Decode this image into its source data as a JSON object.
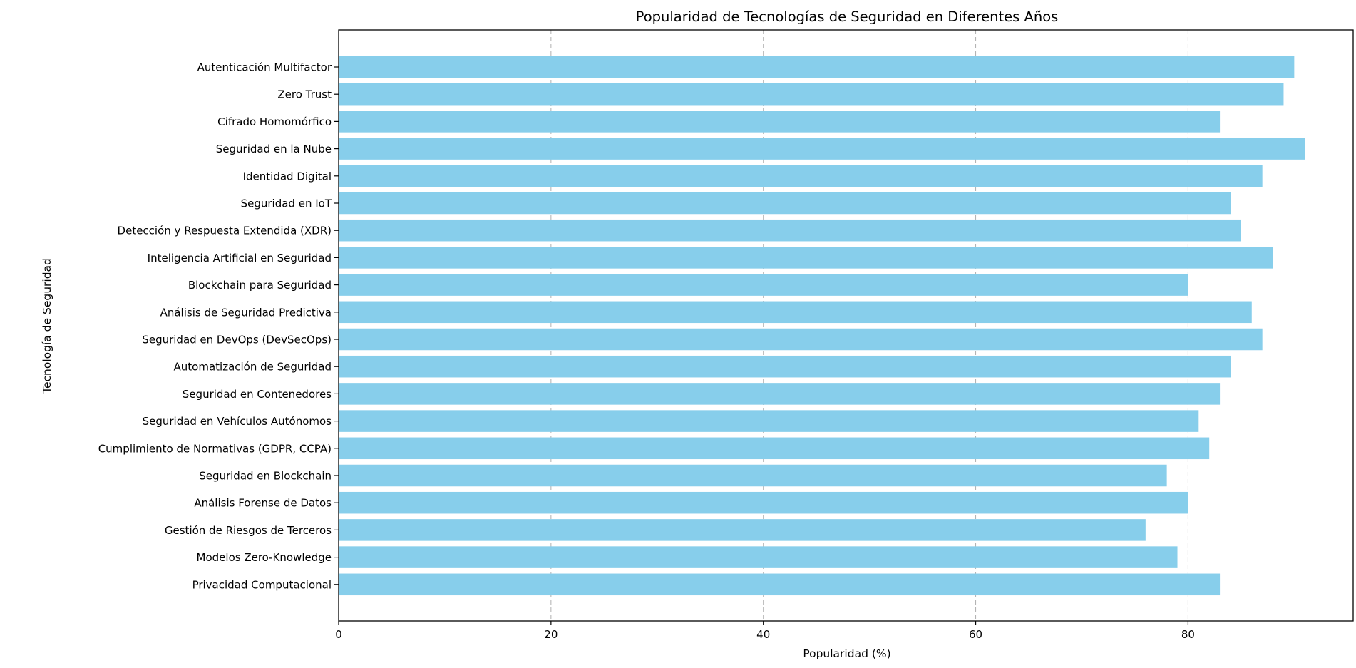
{
  "chart_data": {
    "type": "bar",
    "orientation": "horizontal",
    "title": "Popularidad de Tecnologías de Seguridad en Diferentes Años",
    "xlabel": "Popularidad (%)",
    "ylabel": "Tecnología de Seguridad",
    "categories": [
      "Autenticación Multifactor",
      "Zero Trust",
      "Cifrado Homomórfico",
      "Seguridad en la Nube",
      "Identidad Digital",
      "Seguridad en IoT",
      "Detección y Respuesta Extendida (XDR)",
      "Inteligencia Artificial en Seguridad",
      "Blockchain para Seguridad",
      "Análisis de Seguridad Predictiva",
      "Seguridad en DevOps (DevSecOps)",
      "Automatización de Seguridad",
      "Seguridad en Contenedores",
      "Seguridad en Vehículos Autónomos",
      "Cumplimiento de Normativas (GDPR, CCPA)",
      "Seguridad en Blockchain",
      "Análisis Forense de Datos",
      "Gestión de Riesgos de Terceros",
      "Modelos Zero-Knowledge",
      "Privacidad Computacional"
    ],
    "values": [
      90,
      89,
      83,
      91,
      87,
      84,
      85,
      88,
      80,
      86,
      87,
      84,
      83,
      81,
      82,
      78,
      80,
      76,
      79,
      83
    ],
    "xlim": [
      0,
      95.55
    ],
    "xticks": [
      0,
      20,
      40,
      60,
      80
    ],
    "grid": "x-dashed",
    "bar_color": "#87ceeb",
    "grid_color": "#b0b0b0"
  }
}
